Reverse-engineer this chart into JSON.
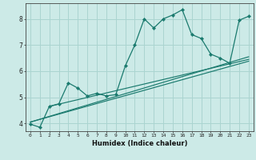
{
  "xlabel": "Humidex (Indice chaleur)",
  "background_color": "#cceae7",
  "grid_color": "#aad4d0",
  "line_color": "#1a7a6e",
  "xlim": [
    -0.5,
    23.5
  ],
  "ylim": [
    3.7,
    8.6
  ],
  "yticks": [
    4,
    5,
    6,
    7,
    8
  ],
  "xticks": [
    0,
    1,
    2,
    3,
    4,
    5,
    6,
    7,
    8,
    9,
    10,
    11,
    12,
    13,
    14,
    15,
    16,
    17,
    18,
    19,
    20,
    21,
    22,
    23
  ],
  "series": [
    [
      0,
      3.97
    ],
    [
      1,
      3.85
    ],
    [
      2,
      4.65
    ],
    [
      3,
      4.75
    ],
    [
      4,
      5.55
    ],
    [
      5,
      5.35
    ],
    [
      6,
      5.05
    ],
    [
      7,
      5.15
    ],
    [
      8,
      5.05
    ],
    [
      9,
      5.1
    ],
    [
      10,
      6.2
    ],
    [
      11,
      7.0
    ],
    [
      12,
      8.0
    ],
    [
      13,
      7.65
    ],
    [
      14,
      8.0
    ],
    [
      15,
      8.15
    ],
    [
      16,
      8.35
    ],
    [
      17,
      7.4
    ],
    [
      18,
      7.25
    ],
    [
      19,
      6.65
    ],
    [
      20,
      6.5
    ],
    [
      21,
      6.3
    ],
    [
      22,
      7.95
    ],
    [
      23,
      8.1
    ]
  ],
  "trend_lines": [
    [
      [
        0,
        4.05
      ],
      [
        23,
        6.55
      ]
    ],
    [
      [
        0,
        4.05
      ],
      [
        23,
        6.38
      ]
    ],
    [
      [
        2,
        4.65
      ],
      [
        23,
        6.45
      ]
    ]
  ]
}
